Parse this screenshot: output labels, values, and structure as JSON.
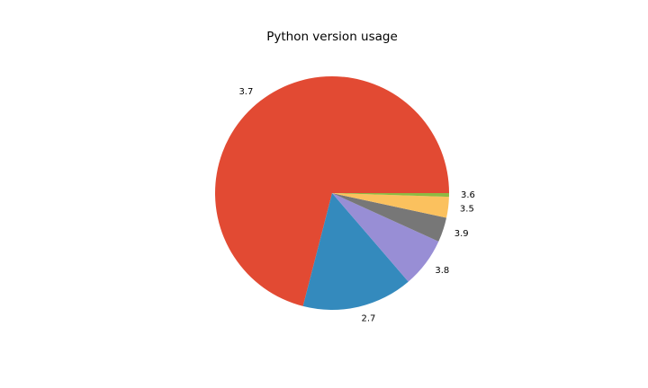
{
  "chart_data": {
    "type": "pie",
    "title": "Python version usage",
    "categories": [
      "3.7",
      "2.7",
      "3.8",
      "3.9",
      "3.5",
      "3.6"
    ],
    "values": [
      71,
      15.3,
      6.9,
      3.4,
      2.9,
      0.5
    ],
    "colors": [
      "#E24A33",
      "#348ABD",
      "#988ED5",
      "#777777",
      "#FBC15E",
      "#8EBA42"
    ]
  }
}
